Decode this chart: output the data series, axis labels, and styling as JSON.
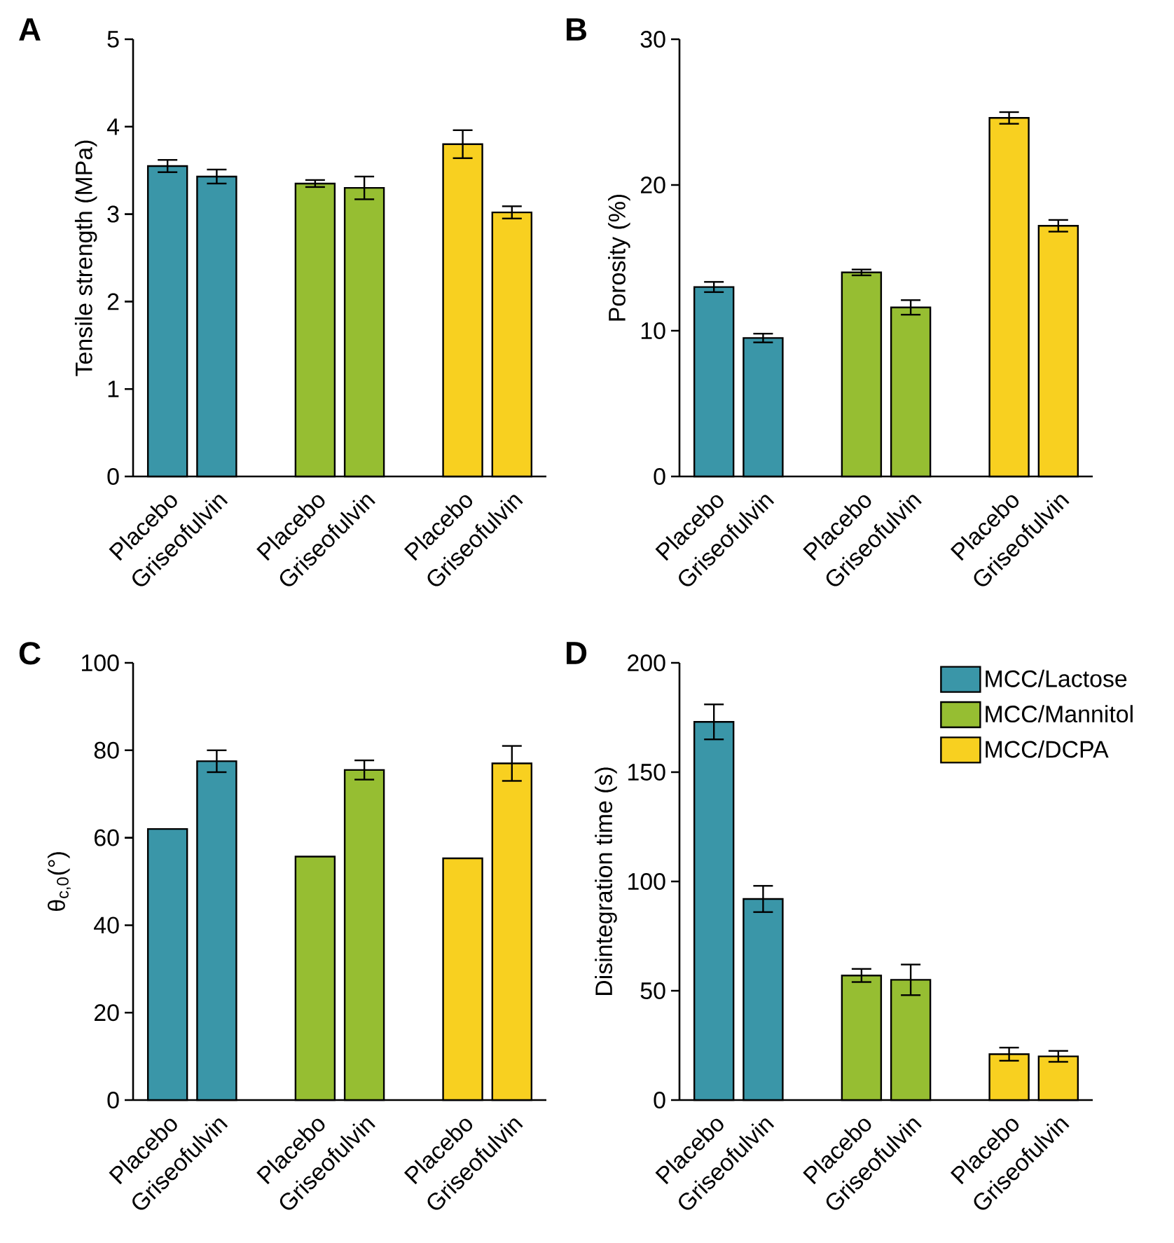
{
  "chart_data": [
    {
      "type": "bar",
      "title": "A",
      "ylabel": "Tensile strength (MPa)",
      "categories": [
        "Placebo",
        "Griseofulvin",
        null,
        "Placebo",
        "Griseofulvin",
        null,
        "Placebo",
        "Griseofulvin"
      ],
      "ylim": [
        0,
        5
      ],
      "yticks": [
        0,
        1,
        2,
        3,
        4,
        5
      ],
      "series": [
        {
          "color": "#3a96a8",
          "values": [
            3.55,
            3.43,
            null,
            null,
            null,
            null,
            null,
            null
          ],
          "errors": [
            0.07,
            0.08,
            null,
            null,
            null,
            null,
            null,
            null
          ]
        },
        {
          "color": "#96be32",
          "values": [
            null,
            null,
            null,
            3.35,
            3.3,
            null,
            null,
            null
          ],
          "errors": [
            null,
            null,
            null,
            0.04,
            0.13,
            null,
            null,
            null
          ]
        },
        {
          "color": "#f8d020",
          "values": [
            null,
            null,
            null,
            null,
            null,
            null,
            3.8,
            3.02
          ],
          "errors": [
            null,
            null,
            null,
            null,
            null,
            null,
            0.16,
            0.07
          ]
        }
      ]
    },
    {
      "type": "bar",
      "title": "B",
      "ylabel": "Porosity (%)",
      "categories": [
        "Placebo",
        "Griseofulvin",
        null,
        "Placebo",
        "Griseofulvin",
        null,
        "Placebo",
        "Griseofulvin"
      ],
      "ylim": [
        0,
        30
      ],
      "yticks": [
        0,
        10,
        20,
        30
      ],
      "series": [
        {
          "color": "#3a96a8",
          "values": [
            13.0,
            9.5,
            null,
            null,
            null,
            null,
            null,
            null
          ],
          "errors": [
            0.35,
            0.3,
            null,
            null,
            null,
            null,
            null,
            null
          ]
        },
        {
          "color": "#96be32",
          "values": [
            null,
            null,
            null,
            14.0,
            11.6,
            null,
            null,
            null
          ],
          "errors": [
            null,
            null,
            null,
            0.2,
            0.5,
            null,
            null,
            null
          ]
        },
        {
          "color": "#f8d020",
          "values": [
            null,
            null,
            null,
            null,
            null,
            null,
            24.6,
            17.2
          ],
          "errors": [
            null,
            null,
            null,
            null,
            null,
            null,
            0.4,
            0.4
          ]
        }
      ]
    },
    {
      "type": "bar",
      "title": "C",
      "ylabel": "θ$_{c,0}$(°)",
      "categories": [
        "Placebo",
        "Griseofulvin",
        null,
        "Placebo",
        "Griseofulvin",
        null,
        "Placebo",
        "Griseofulvin"
      ],
      "ylim": [
        0,
        100
      ],
      "yticks": [
        0,
        20,
        40,
        60,
        80,
        100
      ],
      "series": [
        {
          "color": "#3a96a8",
          "values": [
            62,
            77.5,
            null,
            null,
            null,
            null,
            null,
            null
          ],
          "errors": [
            null,
            2.5,
            null,
            null,
            null,
            null,
            null,
            null
          ]
        },
        {
          "color": "#96be32",
          "values": [
            null,
            null,
            null,
            55.7,
            75.5,
            null,
            null,
            null
          ],
          "errors": [
            null,
            null,
            null,
            null,
            2.2,
            null,
            null,
            null
          ]
        },
        {
          "color": "#f8d020",
          "values": [
            null,
            null,
            null,
            null,
            null,
            null,
            55.3,
            77
          ],
          "errors": [
            null,
            null,
            null,
            null,
            null,
            null,
            null,
            4
          ]
        }
      ]
    },
    {
      "type": "bar",
      "title": "D",
      "ylabel": "Disintegration time (s)",
      "categories": [
        "Placebo",
        "Griseofulvin",
        null,
        "Placebo",
        "Griseofulvin",
        null,
        "Placebo",
        "Griseofulvin"
      ],
      "ylim": [
        0,
        200
      ],
      "yticks": [
        0,
        50,
        100,
        150,
        200
      ],
      "legend": "top right",
      "series": [
        {
          "name": "MCC/Lactose",
          "color": "#3a96a8",
          "values": [
            173,
            92,
            null,
            null,
            null,
            null,
            null,
            null
          ],
          "errors": [
            8,
            6,
            null,
            null,
            null,
            null,
            null,
            null
          ]
        },
        {
          "name": "MCC/Mannitol",
          "color": "#96be32",
          "values": [
            null,
            null,
            null,
            57,
            55,
            null,
            null,
            null
          ],
          "errors": [
            null,
            null,
            null,
            3,
            7,
            null,
            null,
            null
          ]
        },
        {
          "name": "MCC/DCPA",
          "color": "#f8d020",
          "values": [
            null,
            null,
            null,
            null,
            null,
            null,
            21,
            20
          ],
          "errors": [
            null,
            null,
            null,
            null,
            null,
            null,
            3,
            2.5
          ]
        }
      ]
    }
  ]
}
